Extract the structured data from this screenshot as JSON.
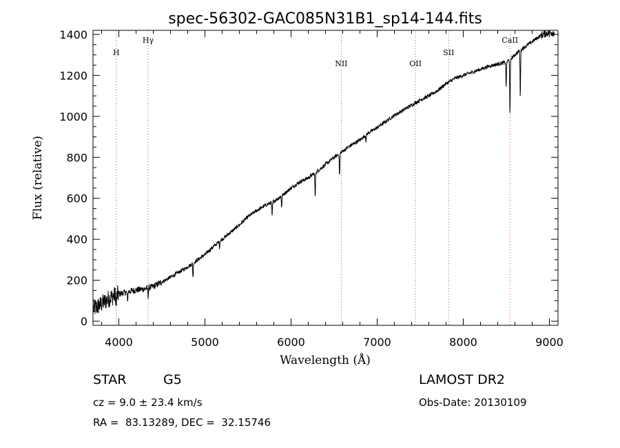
{
  "chart_data": {
    "type": "line",
    "title": "spec-56302-GAC085N31B1_sp14-144.fits",
    "xlabel": "Wavelength (Å)",
    "ylabel": "Flux (relative)",
    "xlim": [
      3700,
      9100
    ],
    "ylim": [
      -20,
      1420
    ],
    "xticks": [
      4000,
      5000,
      6000,
      7000,
      8000,
      9000
    ],
    "yticks": [
      0,
      200,
      400,
      600,
      800,
      1000,
      1200,
      1400
    ],
    "grid": false,
    "series": [
      {
        "x": [
          3700,
          3750,
          3800,
          3850,
          3900,
          3950,
          4000,
          4050,
          4100,
          4150,
          4200,
          4250,
          4300,
          4350,
          4400,
          4450,
          4500,
          4600,
          4700,
          4800,
          4900,
          5000,
          5100,
          5200,
          5300,
          5400,
          5500,
          5600,
          5700,
          5800,
          5900,
          6000,
          6100,
          6200,
          6300,
          6400,
          6500,
          6600,
          6700,
          6800,
          6900,
          7000,
          7100,
          7200,
          7300,
          7400,
          7500,
          7600,
          7700,
          7800,
          7900,
          8000,
          8100,
          8200,
          8300,
          8400,
          8500,
          8550,
          8600,
          8650,
          8700,
          8750,
          8800,
          8850,
          8900,
          8950,
          9000
        ],
        "y": [
          60,
          70,
          85,
          100,
          115,
          125,
          132,
          138,
          143,
          148,
          152,
          155,
          158,
          163,
          170,
          180,
          192,
          215,
          240,
          265,
          295,
          325,
          365,
          400,
          435,
          470,
          510,
          540,
          565,
          585,
          615,
          650,
          680,
          700,
          730,
          765,
          800,
          830,
          860,
          885,
          920,
          945,
          975,
          1005,
          1030,
          1055,
          1080,
          1100,
          1125,
          1160,
          1185,
          1200,
          1215,
          1230,
          1245,
          1255,
          1265,
          1280,
          1300,
          1320,
          1335,
          1350,
          1365,
          1380,
          1395,
          1405,
          1410
        ]
      }
    ],
    "absorption_lines": [
      {
        "x": 3970,
        "depth": 55
      },
      {
        "x": 4101,
        "depth": 50
      },
      {
        "x": 4340,
        "depth": 40
      },
      {
        "x": 4861,
        "depth": 70
      },
      {
        "x": 5170,
        "depth": 30
      },
      {
        "x": 5780,
        "depth": 75
      },
      {
        "x": 5890,
        "depth": 55
      },
      {
        "x": 6280,
        "depth": 120
      },
      {
        "x": 6563,
        "depth": 110
      },
      {
        "x": 6870,
        "depth": 30
      },
      {
        "x": 8498,
        "depth": 120
      },
      {
        "x": 8542,
        "depth": 280
      },
      {
        "x": 8662,
        "depth": 230
      }
    ],
    "line_markers": [
      {
        "x": 3970,
        "label": "H"
      },
      {
        "x": 4340,
        "label": "Hγ"
      },
      {
        "x": 6583,
        "label": "NII"
      },
      {
        "x": 7445,
        "label": "OII"
      },
      {
        "x": 7830,
        "label": "SII"
      },
      {
        "x": 8542,
        "label": "CaII"
      }
    ],
    "marker_color": "#d04040"
  },
  "info": {
    "class": "STAR",
    "subclass": "G5",
    "survey": "LAMOST DR2",
    "cz": "cz = 9.0 ± 23.4 km/s",
    "obs_date": "Obs-Date: 20130109",
    "radec": "RA =  83.13289, DEC =  32.15746"
  }
}
